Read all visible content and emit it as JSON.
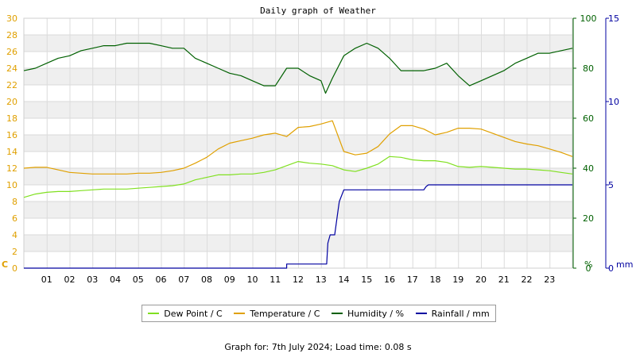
{
  "chart_data": {
    "type": "line",
    "title": "Daily graph of Weather",
    "x_ticks": [
      "01",
      "02",
      "03",
      "04",
      "05",
      "06",
      "07",
      "08",
      "09",
      "10",
      "11",
      "12",
      "13",
      "14",
      "15",
      "16",
      "17",
      "18",
      "19",
      "20",
      "21",
      "22",
      "23"
    ],
    "xlim": [
      0,
      24
    ],
    "axes": {
      "temp": {
        "unit_label": "C",
        "range": [
          0,
          30
        ],
        "ticks": [
          0,
          2,
          4,
          6,
          8,
          10,
          12,
          14,
          16,
          18,
          20,
          22,
          24,
          26,
          28,
          30
        ],
        "color": "#e0a000"
      },
      "humidity": {
        "unit_label": "%",
        "range": [
          0,
          100
        ],
        "ticks": [
          0,
          20,
          40,
          60,
          80,
          100
        ],
        "color": "#006000"
      },
      "rain": {
        "unit_label": "mm",
        "range": [
          0,
          15
        ],
        "ticks": [
          0,
          5,
          10,
          15
        ],
        "color": "#0000a0"
      }
    },
    "series": [
      {
        "name": "Dew Point / C",
        "axis": "temp",
        "color": "#80e020",
        "x": [
          0,
          0.5,
          1,
          1.5,
          2,
          2.5,
          3,
          3.5,
          4,
          4.5,
          5,
          5.5,
          6,
          6.5,
          7,
          7.5,
          8,
          8.5,
          9,
          9.5,
          10,
          10.5,
          11,
          11.5,
          12,
          12.5,
          13,
          13.5,
          14,
          14.5,
          15,
          15.5,
          16,
          16.5,
          17,
          17.5,
          18,
          18.5,
          19,
          19.5,
          20,
          20.5,
          21,
          21.5,
          22,
          22.5,
          23,
          23.5,
          24
        ],
        "y": [
          8.5,
          8.9,
          9.1,
          9.2,
          9.2,
          9.3,
          9.4,
          9.5,
          9.5,
          9.5,
          9.6,
          9.7,
          9.8,
          9.9,
          10.1,
          10.6,
          10.9,
          11.2,
          11.2,
          11.3,
          11.3,
          11.5,
          11.8,
          12.3,
          12.8,
          12.6,
          12.5,
          12.3,
          11.8,
          11.6,
          12.0,
          12.5,
          13.4,
          13.3,
          13.0,
          12.9,
          12.9,
          12.7,
          12.2,
          12.1,
          12.2,
          12.1,
          12.0,
          11.9,
          11.9,
          11.8,
          11.7,
          11.5,
          11.3
        ]
      },
      {
        "name": "Temperature / C",
        "axis": "temp",
        "color": "#e0a000",
        "x": [
          0,
          0.5,
          1,
          1.5,
          2,
          2.5,
          3,
          3.5,
          4,
          4.5,
          5,
          5.5,
          6,
          6.5,
          7,
          7.5,
          8,
          8.5,
          9,
          9.5,
          10,
          10.5,
          11,
          11.5,
          12,
          12.5,
          13,
          13.5,
          14,
          14.5,
          15,
          15.5,
          16,
          16.5,
          17,
          17.5,
          18,
          18.5,
          19,
          19.5,
          20,
          20.5,
          21,
          21.5,
          22,
          22.5,
          23,
          23.5,
          24
        ],
        "y": [
          12.0,
          12.1,
          12.1,
          11.8,
          11.5,
          11.4,
          11.3,
          11.3,
          11.3,
          11.3,
          11.4,
          11.4,
          11.5,
          11.7,
          12.0,
          12.6,
          13.3,
          14.3,
          15.0,
          15.3,
          15.6,
          16.0,
          16.2,
          15.8,
          16.9,
          17.0,
          17.3,
          17.7,
          14.0,
          13.6,
          13.8,
          14.6,
          16.1,
          17.1,
          17.1,
          16.7,
          16.0,
          16.3,
          16.8,
          16.8,
          16.7,
          16.2,
          15.7,
          15.2,
          14.9,
          14.7,
          14.3,
          13.9,
          13.4
        ]
      },
      {
        "name": "Humidity / %",
        "axis": "humidity",
        "color": "#006000",
        "x": [
          0,
          0.5,
          1,
          1.5,
          2,
          2.5,
          3,
          3.5,
          4,
          4.5,
          5,
          5.5,
          6,
          6.5,
          7,
          7.5,
          8,
          8.5,
          9,
          9.5,
          10,
          10.5,
          11,
          11.5,
          12,
          12.5,
          13,
          13.2,
          13.5,
          14,
          14.5,
          15,
          15.5,
          16,
          16.5,
          17,
          17.5,
          18,
          18.5,
          19,
          19.5,
          20,
          20.5,
          21,
          21.5,
          22,
          22.5,
          23,
          23.5,
          24
        ],
        "y": [
          79,
          80,
          82,
          84,
          85,
          87,
          88,
          89,
          89,
          90,
          90,
          90,
          89,
          88,
          88,
          84,
          82,
          80,
          78,
          77,
          75,
          73,
          73,
          80,
          80,
          77,
          75,
          70,
          76,
          85,
          88,
          90,
          88,
          84,
          79,
          79,
          79,
          80,
          82,
          77,
          73,
          75,
          77,
          79,
          82,
          84,
          86,
          86,
          87,
          88
        ]
      },
      {
        "name": "Rainfall / mm",
        "axis": "rain",
        "color": "#0000a0",
        "x": [
          0,
          11.5,
          11.5,
          13.25,
          13.3,
          13.4,
          13.6,
          13.75,
          13.8,
          14.0,
          14.5,
          17.5,
          17.6,
          17.7,
          24
        ],
        "y": [
          0,
          0,
          0.25,
          0.25,
          1.5,
          2.0,
          2.0,
          3.5,
          4.0,
          4.7,
          4.7,
          4.7,
          4.9,
          5.0,
          5.0
        ]
      }
    ],
    "legend_placement": "bottom",
    "grid": true
  },
  "footer": {
    "text": "Graph for: 7th July 2024; Load time: 0.08 s"
  }
}
